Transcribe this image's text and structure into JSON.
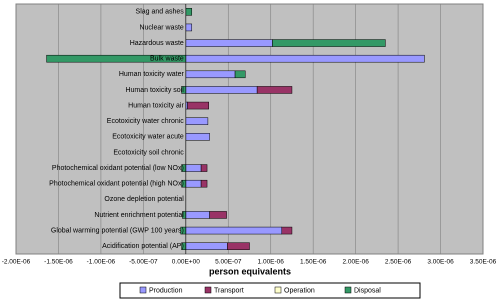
{
  "chart_data": {
    "type": "stacked-bar-horizontal",
    "x_label": "person equivalents",
    "categories": [
      "Slag and ashes",
      "Nuclear waste",
      "Hazardous waste",
      "Bulk waste",
      "Human toxicity water",
      "Human toxicity soil",
      "Human toxicity air",
      "Ecotoxicity water chronic",
      "Ecotoxicity water acute",
      "Ecotoxicity soil chronic",
      "Photochemical oxidant potential (low NOx)",
      "Photochemical oxidant potential (high NOx)",
      "Ozone depletion potential",
      "Nutrient enrichment potential",
      "Global warming potential (GWP 100 years)",
      "Acidification potential (AP)"
    ],
    "series": [
      {
        "name": "Production",
        "color": "#9999ff",
        "values": [
          0,
          7e-08,
          1.02e-06,
          2.81e-06,
          5.8e-07,
          8.4e-07,
          2e-08,
          2.6e-07,
          2.8e-07,
          0,
          1.8e-07,
          1.8e-07,
          0,
          2.8e-07,
          1.13e-06,
          4.9e-07
        ]
      },
      {
        "name": "Transport",
        "color": "#993366",
        "values": [
          0,
          0,
          0,
          0,
          0,
          4.1e-07,
          2.5e-07,
          0,
          0,
          0,
          7e-08,
          7e-08,
          0,
          2e-07,
          1.2e-07,
          2.6e-07
        ]
      },
      {
        "name": "Operation",
        "color": "#ffffcc",
        "values": [
          0,
          0,
          0,
          0,
          0,
          0,
          0,
          0,
          0,
          0,
          0,
          0,
          0,
          0,
          0,
          0
        ]
      },
      {
        "name": "Disposal",
        "color": "#339966",
        "values": [
          7e-08,
          0,
          1.33e-06,
          -1.64e-06,
          1.2e-07,
          -5e-08,
          0,
          0,
          0,
          0,
          -5e-08,
          -5e-08,
          0,
          -4e-08,
          -6e-08,
          -5e-08
        ]
      }
    ],
    "xlim": [
      -2e-06,
      3.5e-06
    ],
    "xticks": [
      {
        "value": -2e-06,
        "label": "-2.00E-06"
      },
      {
        "value": -1.5e-06,
        "label": "-1.50E-06"
      },
      {
        "value": -1e-06,
        "label": "-1.00E-06"
      },
      {
        "value": -5e-07,
        "label": "-5.00E-07"
      },
      {
        "value": 0,
        "label": "0.00E+00"
      },
      {
        "value": 5e-07,
        "label": "5.00E-07"
      },
      {
        "value": 1e-06,
        "label": "1.00E-06"
      },
      {
        "value": 1.5e-06,
        "label": "1.50E-06"
      },
      {
        "value": 2e-06,
        "label": "2.00E-06"
      },
      {
        "value": 2.5e-06,
        "label": "2.50E-06"
      },
      {
        "value": 3e-06,
        "label": "3.00E-06"
      },
      {
        "value": 3.5e-06,
        "label": "3.50E-06"
      }
    ],
    "grid": true
  }
}
